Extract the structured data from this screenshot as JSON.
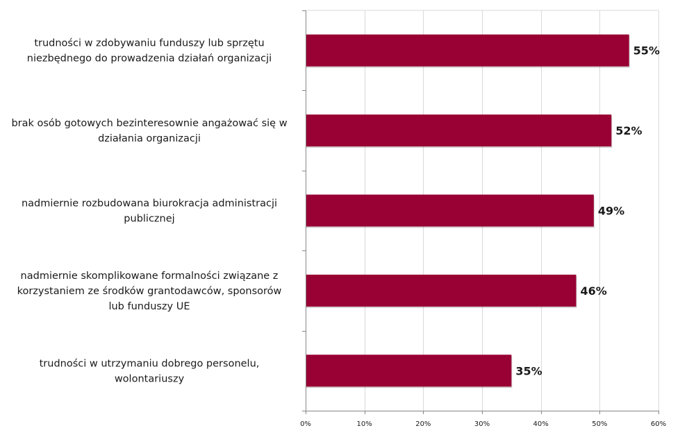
{
  "chart_data": {
    "type": "bar",
    "orientation": "horizontal",
    "categories": [
      [
        "trudności w zdobywaniu funduszy lub sprzętu",
        "niezbędnego do prowadzenia działań organizacji"
      ],
      [
        "brak osób gotowych bezinteresownie angażować się w",
        "działania organizacji"
      ],
      [
        "nadmiernie rozbudowana biurokracja administracji",
        "publicznej"
      ],
      [
        "nadmiernie skomplikowane formalności związane z",
        "korzystaniem ze środków grantodawców, sponsorów",
        "lub funduszy UE"
      ],
      [
        "trudności w utrzymaniu dobrego personelu,",
        "wolontariuszy"
      ]
    ],
    "values": [
      55,
      52,
      49,
      46,
      35
    ],
    "value_labels": [
      "55%",
      "52%",
      "49%",
      "46%",
      "35%"
    ],
    "xlim": [
      0,
      60
    ],
    "xticks": [
      0,
      10,
      20,
      30,
      40,
      50,
      60
    ],
    "xtick_labels": [
      "0%",
      "10%",
      "20%",
      "30%",
      "40%",
      "50%",
      "60%"
    ],
    "grid": "vertical",
    "legend": "none",
    "colors": {
      "bar": "#990033",
      "grid": "#d9d9d9",
      "axis": "#868686"
    }
  }
}
